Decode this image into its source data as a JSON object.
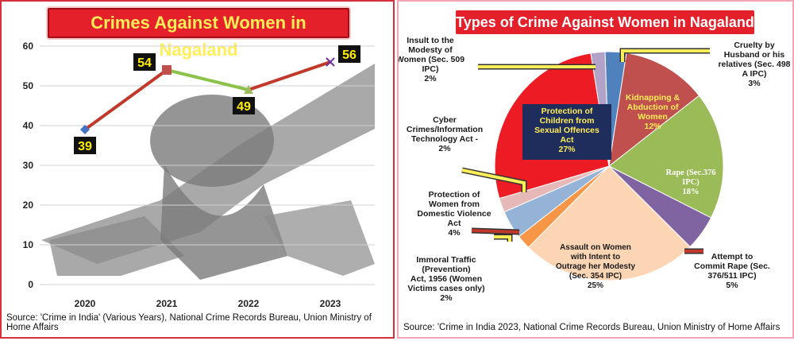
{
  "left": {
    "title": "Crimes Against Women in Nagaland",
    "source": "Source: 'Crime in India' (Various Years), National Crime Records Bureau, Union Ministry of Home Affairs"
  },
  "right": {
    "title": "Types of Crime Against Women in Nagaland",
    "source": "Source: 'Crime in India 2023, National Crime Records Bureau, Union Ministry of Home Affairs"
  },
  "chart_data": [
    {
      "type": "line",
      "title": "Crimes Against Women in Nagaland",
      "categories": [
        "2020",
        "2021",
        "2022",
        "2023"
      ],
      "values": [
        39,
        54,
        49,
        56
      ],
      "data_labels": [
        "39",
        "54",
        "49",
        "56"
      ],
      "ylim": [
        0,
        60
      ],
      "yticks": [
        "0",
        "10",
        "20",
        "30",
        "40",
        "50",
        "60"
      ],
      "grid": true,
      "colors": {
        "rising": "#c0392b",
        "falling": "#8bc34a",
        "label_bg": "#111111",
        "label_text": "#ffee00"
      }
    },
    {
      "type": "pie",
      "title": "Types of Crime Against Women in Nagaland",
      "slices": [
        {
          "label": [
            "Cruelty by",
            "Husband or his",
            "relatives (Sec. 498",
            "A IPC)",
            "3%"
          ],
          "value": 3,
          "color": "#4f81bd"
        },
        {
          "label": [
            "Kidnapping &",
            "Abduction of",
            "Women",
            "12%"
          ],
          "value": 12,
          "color": "#c0504d"
        },
        {
          "label": [
            "Rape (Sec.376",
            "IPC)",
            "18%"
          ],
          "value": 18,
          "color": "#9bbb59"
        },
        {
          "label": [
            "Attempt to",
            "Commit Rape (Sec.",
            "376/511 IPC)",
            "5%"
          ],
          "value": 5,
          "color": "#8064a2"
        },
        {
          "label": [
            "Assault on Women",
            "with Intent to",
            "Outrage her Modesty",
            "(Sec. 354 IPC)",
            "25%"
          ],
          "value": 25,
          "color": "#fcd5b5"
        },
        {
          "label": [
            "Immoral Traffic",
            "(Prevention)",
            "Act, 1956 (Women",
            "Victims cases only)",
            "2%"
          ],
          "value": 2,
          "color": "#f79646"
        },
        {
          "label": [
            "Protection of",
            "Women from",
            "Domestic Violence",
            "Act",
            "4%"
          ],
          "value": 4,
          "color": "#95b3d7"
        },
        {
          "label": [
            "Cyber",
            "Crimes/Information",
            "Technology Act -",
            "2%"
          ],
          "value": 2,
          "color": "#e6b9b8"
        },
        {
          "label": [
            "Protection of",
            "Children from",
            "Sexual Offences",
            "Act",
            "27%"
          ],
          "value": 27,
          "color": "#ed1c24"
        },
        {
          "label": [
            "Insult to the",
            "Modesty of",
            "Women (Sec. 509",
            "IPC)",
            "2%"
          ],
          "value": 2,
          "color": "#b3a2c7"
        }
      ]
    }
  ]
}
